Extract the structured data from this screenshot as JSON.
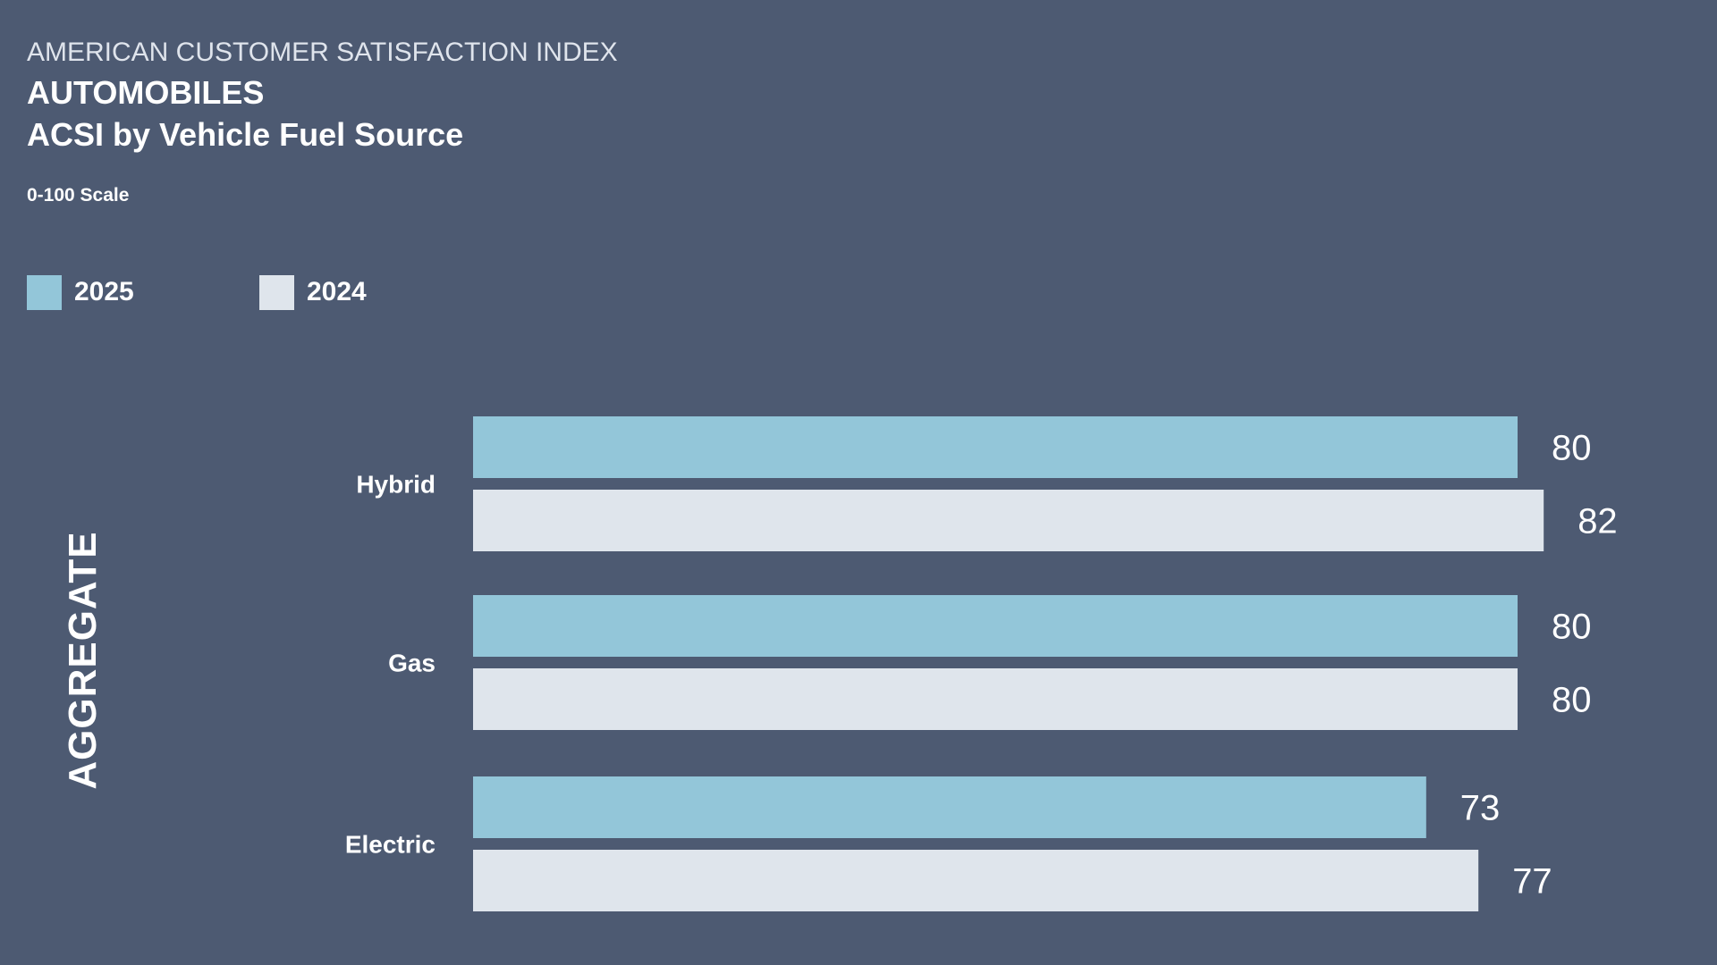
{
  "header": {
    "kicker": "AMERICAN CUSTOMER SATISFACTION INDEX",
    "title": "AUTOMOBILES",
    "subtitle": "ACSI by Vehicle Fuel Source",
    "scale_note": "0-100 Scale"
  },
  "legend": {
    "items": [
      {
        "label": "2025",
        "color": "#93c6d9"
      },
      {
        "label": "2024",
        "color": "#dfe5ec"
      }
    ]
  },
  "colors": {
    "background": "#4d5a72",
    "series_2025": "#93c6d9",
    "series_2024": "#dfe5ec",
    "text": "#ffffff"
  },
  "chart_data": {
    "type": "bar",
    "orientation": "horizontal",
    "title": "ACSI by Vehicle Fuel Source",
    "group_label": "AGGREGATE",
    "categories": [
      "Hybrid",
      "Gas",
      "Electric"
    ],
    "series": [
      {
        "name": "2025",
        "values": [
          80,
          80,
          73
        ],
        "color": "#93c6d9"
      },
      {
        "name": "2024",
        "values": [
          82,
          80,
          77
        ],
        "color": "#dfe5ec"
      }
    ],
    "xlim": [
      0,
      100
    ],
    "grid": false,
    "legend_position": "top-left",
    "data_labels": true
  }
}
